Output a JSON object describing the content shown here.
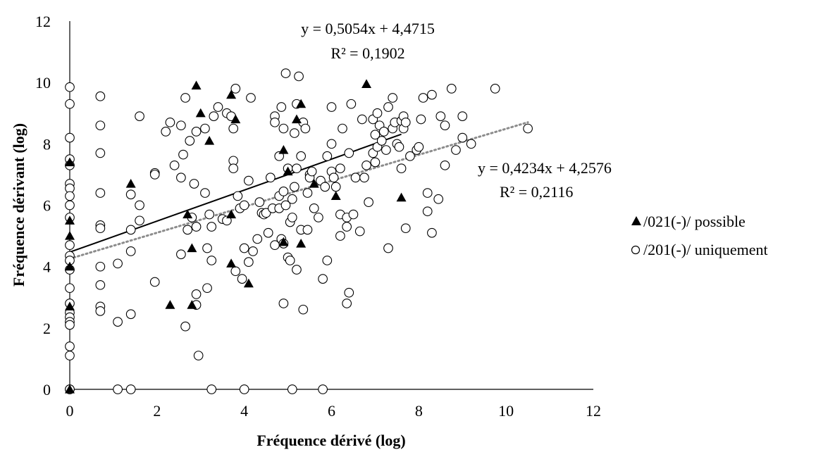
{
  "chart_data": {
    "type": "scatter",
    "xlabel": "Fréquence dérivé (log)",
    "ylabel": "Fréquence dérivant (log)",
    "xlim": [
      0,
      12
    ],
    "ylim": [
      0,
      12
    ],
    "x_ticks": [
      "0",
      "2",
      "4",
      "6",
      "8",
      "10",
      "12"
    ],
    "y_ticks": [
      "0",
      "2",
      "4",
      "6",
      "8",
      "10",
      "12"
    ],
    "legend_position": "right",
    "series": [
      {
        "name": "/021(-)/ possible",
        "marker": "filled-triangle",
        "color": "#000000",
        "trendline": {
          "style": "solid",
          "slope": 0.5054,
          "intercept": 4.4715,
          "x_range": [
            0,
            7.6
          ],
          "equation": "y = 0,5054x + 4,4715",
          "r2": "R² = 0,1902"
        },
        "points": [
          [
            0,
            7.4
          ],
          [
            0,
            5.5
          ],
          [
            0,
            5.0
          ],
          [
            0,
            4.0
          ],
          [
            0,
            2.7
          ],
          [
            0,
            0
          ],
          [
            1.4,
            6.7
          ],
          [
            2.3,
            2.75
          ],
          [
            2.7,
            5.7
          ],
          [
            2.8,
            4.6
          ],
          [
            2.8,
            2.75
          ],
          [
            2.9,
            9.9
          ],
          [
            3.0,
            9.0
          ],
          [
            3.2,
            8.1
          ],
          [
            3.7,
            9.6
          ],
          [
            3.7,
            5.7
          ],
          [
            3.7,
            4.1
          ],
          [
            3.8,
            8.8
          ],
          [
            4.1,
            3.45
          ],
          [
            4.9,
            7.8
          ],
          [
            4.9,
            4.8
          ],
          [
            5.0,
            7.1
          ],
          [
            5.2,
            8.8
          ],
          [
            5.3,
            9.3
          ],
          [
            5.3,
            4.75
          ],
          [
            5.6,
            6.7
          ],
          [
            6.1,
            6.3
          ],
          [
            6.8,
            9.95
          ],
          [
            7.6,
            6.25
          ]
        ]
      },
      {
        "name": "/201(-)/ uniquement",
        "marker": "open-circle",
        "color": "#000000",
        "trendline": {
          "style": "dotted",
          "color": "#8c8c8c",
          "slope": 0.4234,
          "intercept": 4.2576,
          "x_range": [
            0,
            10.5
          ],
          "equation": "y = 0,4234x + 4,2576",
          "r2": "R² = 0,2116"
        },
        "points": [
          [
            0,
            9.85
          ],
          [
            0,
            9.3
          ],
          [
            0,
            8.2
          ],
          [
            0,
            7.5
          ],
          [
            0,
            7.3
          ],
          [
            0,
            6.7
          ],
          [
            0,
            6.55
          ],
          [
            0,
            6.3
          ],
          [
            0,
            6.0
          ],
          [
            0,
            5.6
          ],
          [
            0,
            4.7
          ],
          [
            0,
            4.35
          ],
          [
            0,
            4.2
          ],
          [
            0,
            3.9
          ],
          [
            0,
            3.3
          ],
          [
            0,
            2.8
          ],
          [
            0,
            2.5
          ],
          [
            0,
            2.35
          ],
          [
            0,
            2.2
          ],
          [
            0,
            2.1
          ],
          [
            0,
            1.4
          ],
          [
            0,
            1.1
          ],
          [
            0,
            0
          ],
          [
            0,
            0
          ],
          [
            0.7,
            9.55
          ],
          [
            0.7,
            8.6
          ],
          [
            0.7,
            7.7
          ],
          [
            0.7,
            6.4
          ],
          [
            0.7,
            5.35
          ],
          [
            0.7,
            5.25
          ],
          [
            0.7,
            4.0
          ],
          [
            0.7,
            3.4
          ],
          [
            0.7,
            2.7
          ],
          [
            0.7,
            2.55
          ],
          [
            1.1,
            2.2
          ],
          [
            1.1,
            0
          ],
          [
            1.1,
            4.1
          ],
          [
            1.4,
            6.35
          ],
          [
            1.4,
            5.2
          ],
          [
            1.4,
            4.5
          ],
          [
            1.4,
            2.45
          ],
          [
            1.4,
            0
          ],
          [
            1.6,
            8.9
          ],
          [
            1.6,
            6.0
          ],
          [
            1.6,
            5.5
          ],
          [
            1.95,
            7.05
          ],
          [
            1.95,
            7.0
          ],
          [
            1.95,
            3.5
          ],
          [
            2.2,
            8.4
          ],
          [
            2.3,
            8.7
          ],
          [
            2.4,
            7.3
          ],
          [
            2.55,
            8.6
          ],
          [
            2.55,
            6.9
          ],
          [
            2.55,
            4.4
          ],
          [
            2.6,
            7.65
          ],
          [
            2.65,
            9.5
          ],
          [
            2.7,
            5.2
          ],
          [
            2.65,
            2.05
          ],
          [
            2.75,
            8.1
          ],
          [
            2.8,
            5.6
          ],
          [
            2.85,
            6.7
          ],
          [
            2.9,
            8.4
          ],
          [
            2.9,
            5.3
          ],
          [
            2.9,
            3.1
          ],
          [
            2.9,
            2.75
          ],
          [
            2.95,
            1.1
          ],
          [
            3.1,
            8.5
          ],
          [
            3.1,
            6.4
          ],
          [
            3.15,
            4.6
          ],
          [
            3.15,
            3.3
          ],
          [
            3.2,
            5.7
          ],
          [
            3.25,
            5.3
          ],
          [
            3.25,
            4.2
          ],
          [
            3.25,
            0
          ],
          [
            3.3,
            8.9
          ],
          [
            3.4,
            9.2
          ],
          [
            3.5,
            5.55
          ],
          [
            3.6,
            9.0
          ],
          [
            3.6,
            5.5
          ],
          [
            3.7,
            8.9
          ],
          [
            3.75,
            8.5
          ],
          [
            3.75,
            7.45
          ],
          [
            3.75,
            7.2
          ],
          [
            3.8,
            9.8
          ],
          [
            3.85,
            6.3
          ],
          [
            3.8,
            3.85
          ],
          [
            3.9,
            5.9
          ],
          [
            3.95,
            3.6
          ],
          [
            4.0,
            6.0
          ],
          [
            4.0,
            4.6
          ],
          [
            4.0,
            0
          ],
          [
            4.1,
            6.8
          ],
          [
            4.1,
            4.15
          ],
          [
            4.15,
            9.5
          ],
          [
            4.2,
            4.5
          ],
          [
            4.3,
            4.9
          ],
          [
            4.35,
            6.1
          ],
          [
            4.4,
            5.75
          ],
          [
            4.45,
            5.7
          ],
          [
            4.5,
            5.75
          ],
          [
            4.55,
            5.1
          ],
          [
            4.6,
            6.9
          ],
          [
            4.65,
            5.9
          ],
          [
            4.7,
            8.9
          ],
          [
            4.7,
            8.7
          ],
          [
            4.7,
            4.7
          ],
          [
            4.8,
            6.3
          ],
          [
            4.8,
            5.9
          ],
          [
            4.8,
            7.6
          ],
          [
            4.85,
            9.2
          ],
          [
            4.85,
            4.9
          ],
          [
            4.9,
            8.5
          ],
          [
            4.9,
            6.45
          ],
          [
            4.9,
            4.75
          ],
          [
            4.9,
            2.8
          ],
          [
            4.95,
            10.3
          ],
          [
            4.95,
            6.0
          ],
          [
            5.0,
            7.2
          ],
          [
            5.0,
            4.3
          ],
          [
            5.05,
            5.45
          ],
          [
            5.05,
            4.2
          ],
          [
            5.1,
            6.2
          ],
          [
            5.1,
            5.6
          ],
          [
            5.1,
            0
          ],
          [
            5.15,
            8.35
          ],
          [
            5.15,
            6.6
          ],
          [
            5.2,
            9.3
          ],
          [
            5.2,
            7.2
          ],
          [
            5.2,
            3.9
          ],
          [
            5.25,
            10.2
          ],
          [
            5.3,
            7.6
          ],
          [
            5.3,
            5.2
          ],
          [
            5.35,
            8.7
          ],
          [
            5.35,
            2.6
          ],
          [
            5.4,
            8.5
          ],
          [
            5.45,
            5.2
          ],
          [
            5.45,
            6.4
          ],
          [
            5.5,
            7.0
          ],
          [
            5.5,
            6.9
          ],
          [
            5.55,
            7.1
          ],
          [
            5.6,
            5.9
          ],
          [
            5.7,
            5.6
          ],
          [
            5.75,
            6.8
          ],
          [
            5.8,
            3.6
          ],
          [
            5.85,
            6.6
          ],
          [
            5.8,
            0
          ],
          [
            5.9,
            7.6
          ],
          [
            5.9,
            4.2
          ],
          [
            6.0,
            8.0
          ],
          [
            6.0,
            9.2
          ],
          [
            6.0,
            7.1
          ],
          [
            6.05,
            6.9
          ],
          [
            6.1,
            6.6
          ],
          [
            6.2,
            5.7
          ],
          [
            6.2,
            7.2
          ],
          [
            6.2,
            5.0
          ],
          [
            6.25,
            8.5
          ],
          [
            6.35,
            5.3
          ],
          [
            6.35,
            5.6
          ],
          [
            6.35,
            2.8
          ],
          [
            6.4,
            7.7
          ],
          [
            6.4,
            3.15
          ],
          [
            6.45,
            9.3
          ],
          [
            6.5,
            5.7
          ],
          [
            6.55,
            6.9
          ],
          [
            6.65,
            5.15
          ],
          [
            6.7,
            8.8
          ],
          [
            6.75,
            6.9
          ],
          [
            6.8,
            7.3
          ],
          [
            6.85,
            6.1
          ],
          [
            6.95,
            7.7
          ],
          [
            6.95,
            8.8
          ],
          [
            7.0,
            8.3
          ],
          [
            7.0,
            7.4
          ],
          [
            7.05,
            9.0
          ],
          [
            7.05,
            7.9
          ],
          [
            7.1,
            8.6
          ],
          [
            7.15,
            8.1
          ],
          [
            7.2,
            8.4
          ],
          [
            7.25,
            7.8
          ],
          [
            7.3,
            9.2
          ],
          [
            7.3,
            4.6
          ],
          [
            7.4,
            9.5
          ],
          [
            7.4,
            8.5
          ],
          [
            7.45,
            8.7
          ],
          [
            7.5,
            8.0
          ],
          [
            7.55,
            7.9
          ],
          [
            7.6,
            7.2
          ],
          [
            7.6,
            8.75
          ],
          [
            7.65,
            8.9
          ],
          [
            7.65,
            8.5
          ],
          [
            7.7,
            8.7
          ],
          [
            7.7,
            5.25
          ],
          [
            7.8,
            7.6
          ],
          [
            7.95,
            7.8
          ],
          [
            8.0,
            7.9
          ],
          [
            8.05,
            8.8
          ],
          [
            8.1,
            9.5
          ],
          [
            8.2,
            6.4
          ],
          [
            8.2,
            5.8
          ],
          [
            8.3,
            9.6
          ],
          [
            8.3,
            5.1
          ],
          [
            8.45,
            6.2
          ],
          [
            8.5,
            8.9
          ],
          [
            8.6,
            8.6
          ],
          [
            8.6,
            7.3
          ],
          [
            8.75,
            9.8
          ],
          [
            8.85,
            7.8
          ],
          [
            9.0,
            8.9
          ],
          [
            9.0,
            8.2
          ],
          [
            9.2,
            8.0
          ],
          [
            9.75,
            9.8
          ],
          [
            10.5,
            8.5
          ]
        ]
      }
    ]
  }
}
